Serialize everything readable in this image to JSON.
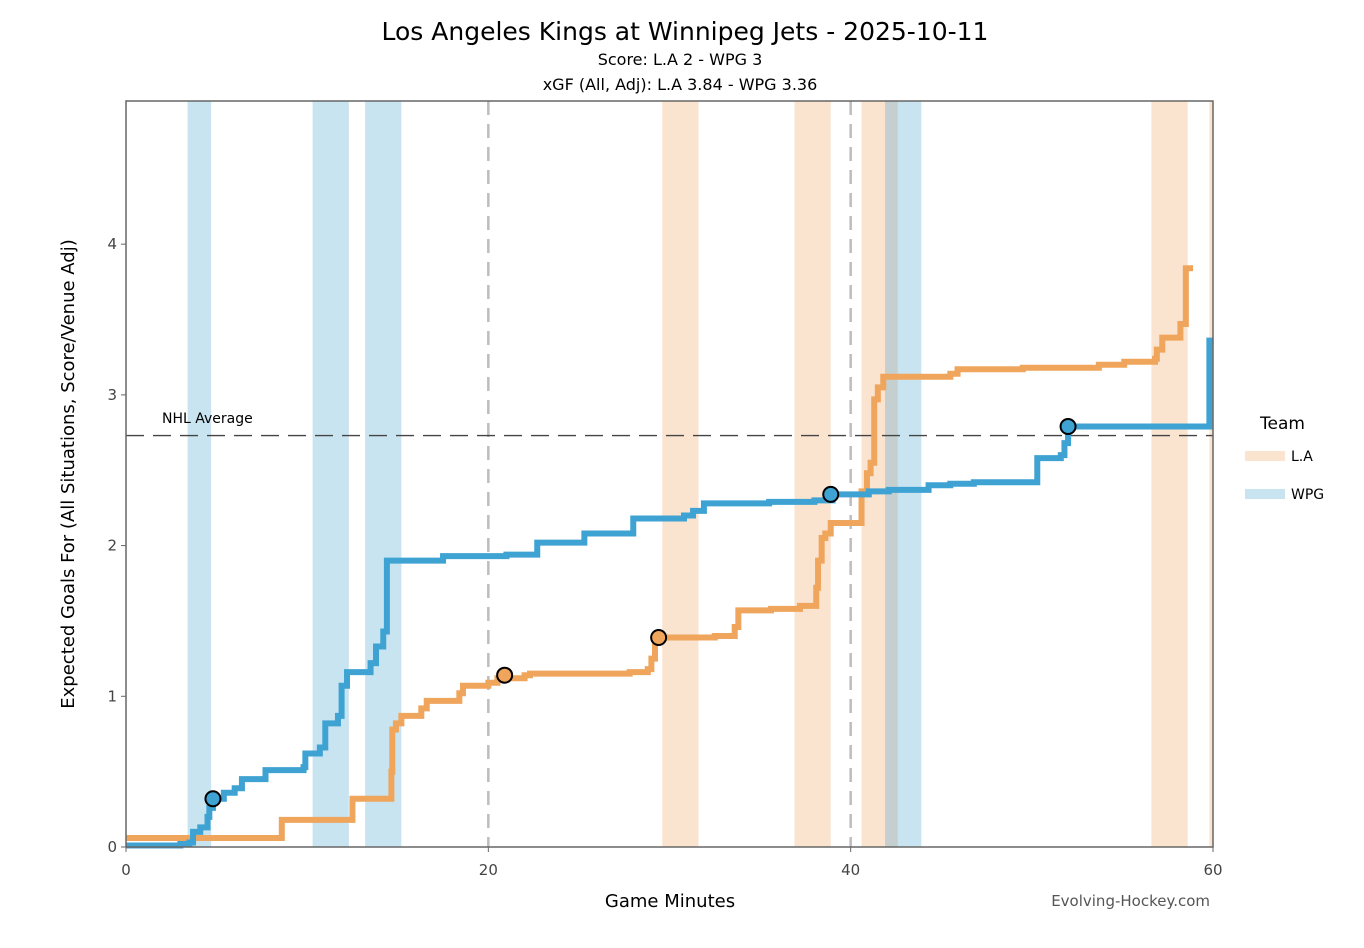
{
  "chart_data": {
    "type": "line",
    "title": "Los Angeles Kings at Winnipeg Jets - 2025-10-11",
    "subtitle_score": "Score: L.A 2 - WPG 3",
    "subtitle_xgf": "xGF (All, Adj): L.A 3.84 - WPG 3.36",
    "xlabel": "Game Minutes",
    "ylabel": "Expected Goals For (All Situations, Score/Venue Adj)",
    "xlim": [
      0,
      60
    ],
    "ylim": [
      0,
      4.95
    ],
    "xticks": [
      0,
      20,
      40,
      60
    ],
    "yticks": [
      0,
      1,
      2,
      3,
      4
    ],
    "period_lines": [
      20,
      40
    ],
    "nhl_average": {
      "label": "NHL Average",
      "value": 2.73
    },
    "legend": {
      "title": "Team",
      "entries": [
        "L.A",
        "WPG"
      ]
    },
    "colors": {
      "L.A": "#f0a55c",
      "WPG": "#3ea3d3",
      "L.A_pp": "#fae3cf",
      "WPG_pp": "#c8e4f0",
      "overlap": "#c6cfcf"
    },
    "power_plays": [
      {
        "team": "WPG",
        "start": 3.4,
        "end": 4.7
      },
      {
        "team": "WPG",
        "start": 10.3,
        "end": 12.3
      },
      {
        "team": "WPG",
        "start": 13.2,
        "end": 15.2
      },
      {
        "team": "L.A",
        "start": 29.6,
        "end": 31.6
      },
      {
        "team": "L.A",
        "start": 36.9,
        "end": 38.9
      },
      {
        "team": "L.A",
        "start": 40.6,
        "end": 42.6
      },
      {
        "team": "WPG",
        "start": 41.9,
        "end": 43.9
      },
      {
        "team": "L.A",
        "start": 56.6,
        "end": 58.6
      },
      {
        "team": "L.A",
        "start": 59.8,
        "end": 60.0
      }
    ],
    "series": [
      {
        "name": "L.A",
        "steps": [
          [
            0,
            0.06
          ],
          [
            8.5,
            0.06
          ],
          [
            8.6,
            0.18
          ],
          [
            12.4,
            0.18
          ],
          [
            12.5,
            0.32
          ],
          [
            14.6,
            0.32
          ],
          [
            14.65,
            0.5
          ],
          [
            14.7,
            0.78
          ],
          [
            14.9,
            0.82
          ],
          [
            15.2,
            0.87
          ],
          [
            16.3,
            0.92
          ],
          [
            16.6,
            0.97
          ],
          [
            18.4,
            1.02
          ],
          [
            18.6,
            1.07
          ],
          [
            20.0,
            1.09
          ],
          [
            20.5,
            1.12
          ],
          [
            22.0,
            1.14
          ],
          [
            22.3,
            1.15
          ],
          [
            25.5,
            1.15
          ],
          [
            27.8,
            1.16
          ],
          [
            28.8,
            1.18
          ],
          [
            29.0,
            1.25
          ],
          [
            29.2,
            1.39
          ],
          [
            31.0,
            1.39
          ],
          [
            32.5,
            1.4
          ],
          [
            33.6,
            1.46
          ],
          [
            33.8,
            1.57
          ],
          [
            35.6,
            1.58
          ],
          [
            36.0,
            1.58
          ],
          [
            37.2,
            1.6
          ],
          [
            38.1,
            1.72
          ],
          [
            38.2,
            1.9
          ],
          [
            38.4,
            2.05
          ],
          [
            38.6,
            2.08
          ],
          [
            38.9,
            2.15
          ],
          [
            40.1,
            2.15
          ],
          [
            40.6,
            2.36
          ],
          [
            40.9,
            2.48
          ],
          [
            41.1,
            2.55
          ],
          [
            41.3,
            2.97
          ],
          [
            41.5,
            3.05
          ],
          [
            41.8,
            3.12
          ],
          [
            45.5,
            3.14
          ],
          [
            45.9,
            3.17
          ],
          [
            49.5,
            3.18
          ],
          [
            53.7,
            3.2
          ],
          [
            55.1,
            3.22
          ],
          [
            56.8,
            3.24
          ],
          [
            56.9,
            3.3
          ],
          [
            57.2,
            3.38
          ],
          [
            58.2,
            3.47
          ],
          [
            58.5,
            3.84
          ],
          [
            58.9,
            3.84
          ]
        ]
      },
      {
        "name": "WPG",
        "steps": [
          [
            0,
            0.01
          ],
          [
            3.0,
            0.02
          ],
          [
            3.5,
            0.03
          ],
          [
            3.7,
            0.1
          ],
          [
            4.1,
            0.13
          ],
          [
            4.5,
            0.2
          ],
          [
            4.6,
            0.26
          ],
          [
            4.8,
            0.32
          ],
          [
            5.4,
            0.36
          ],
          [
            6.0,
            0.39
          ],
          [
            6.4,
            0.45
          ],
          [
            7.7,
            0.51
          ],
          [
            9.8,
            0.53
          ],
          [
            9.9,
            0.62
          ],
          [
            10.7,
            0.66
          ],
          [
            11.0,
            0.82
          ],
          [
            11.7,
            0.87
          ],
          [
            11.9,
            1.07
          ],
          [
            12.2,
            1.16
          ],
          [
            13.5,
            1.22
          ],
          [
            13.8,
            1.33
          ],
          [
            14.2,
            1.43
          ],
          [
            14.4,
            1.9
          ],
          [
            17.5,
            1.93
          ],
          [
            21.0,
            1.94
          ],
          [
            22.7,
            2.02
          ],
          [
            25.3,
            2.08
          ],
          [
            28.0,
            2.18
          ],
          [
            30.8,
            2.2
          ],
          [
            31.3,
            2.23
          ],
          [
            31.9,
            2.28
          ],
          [
            35.5,
            2.29
          ],
          [
            38.0,
            2.3
          ],
          [
            39.0,
            2.34
          ],
          [
            41.0,
            2.36
          ],
          [
            42.1,
            2.37
          ],
          [
            44.3,
            2.4
          ],
          [
            45.5,
            2.41
          ],
          [
            46.8,
            2.42
          ],
          [
            50.3,
            2.58
          ],
          [
            51.6,
            2.6
          ],
          [
            51.8,
            2.68
          ],
          [
            52.0,
            2.79
          ],
          [
            59.75,
            2.79
          ],
          [
            59.8,
            3.36
          ],
          [
            60.0,
            3.36
          ]
        ]
      }
    ],
    "goals": [
      {
        "team": "WPG",
        "time": 4.8,
        "xg": 0.32
      },
      {
        "team": "L.A",
        "time": 20.9,
        "xg": 1.14
      },
      {
        "team": "L.A",
        "time": 29.4,
        "xg": 1.39
      },
      {
        "team": "WPG",
        "time": 38.9,
        "xg": 2.34
      },
      {
        "team": "WPG",
        "time": 52.0,
        "xg": 2.79
      }
    ],
    "credit": "Evolving-Hockey.com"
  }
}
